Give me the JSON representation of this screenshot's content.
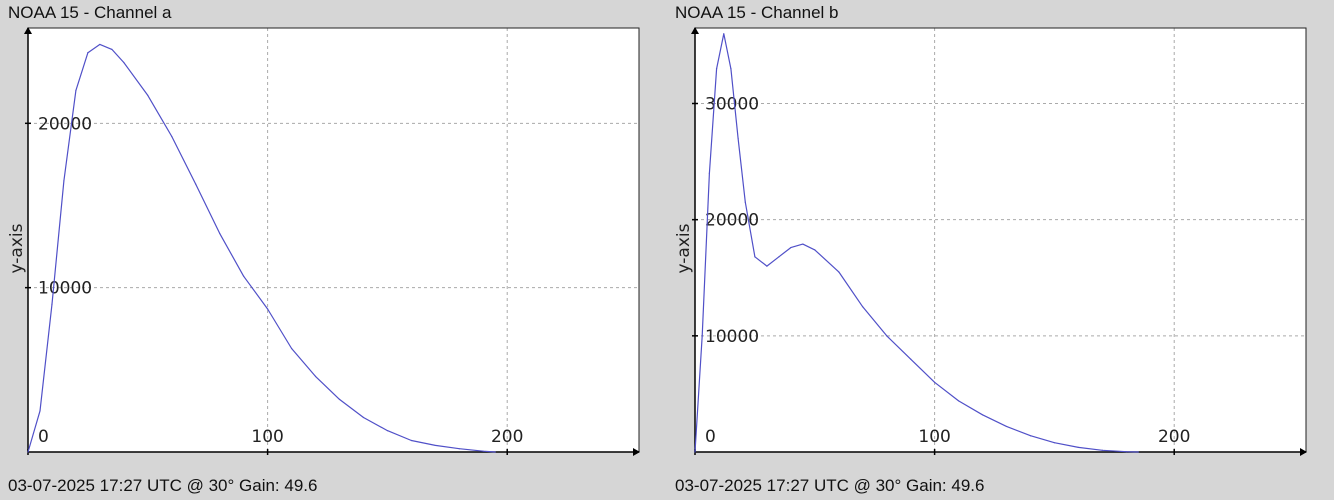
{
  "charts": [
    {
      "title": "NOAA 15 - Channel a",
      "footer": "03-07-2025 17:27 UTC @ 30° Gain: 49.6"
    },
    {
      "title": "NOAA 15 - Channel b",
      "footer": "03-07-2025 17:27 UTC @ 30° Gain: 49.6"
    }
  ],
  "chart_data": [
    {
      "type": "line",
      "title": "NOAA 15 - Channel a",
      "xlabel": "",
      "ylabel": "y-axis",
      "xlim": [
        0,
        255
      ],
      "ylim": [
        0,
        25800
      ],
      "xticks": [
        0,
        100,
        200
      ],
      "yticks": [
        10000,
        20000
      ],
      "grid": true,
      "line_color": "#5050c8",
      "x": [
        0,
        5,
        10,
        15,
        20,
        25,
        30,
        35,
        40,
        50,
        60,
        70,
        80,
        90,
        100,
        110,
        120,
        130,
        140,
        150,
        160,
        170,
        180,
        190,
        195
      ],
      "y": [
        0,
        2500,
        9000,
        16500,
        22000,
        24300,
        24800,
        24500,
        23700,
        21700,
        19200,
        16300,
        13300,
        10700,
        8700,
        6300,
        4600,
        3200,
        2100,
        1300,
        700,
        400,
        200,
        50,
        0
      ]
    },
    {
      "type": "line",
      "title": "NOAA 15 - Channel b",
      "xlabel": "",
      "ylabel": "y-axis",
      "xlim": [
        0,
        255
      ],
      "ylim": [
        0,
        36500
      ],
      "xticks": [
        0,
        100,
        200
      ],
      "yticks": [
        10000,
        20000,
        30000
      ],
      "grid": true,
      "line_color": "#5050c8",
      "x": [
        0,
        3,
        6,
        9,
        12,
        15,
        18,
        21,
        25,
        30,
        35,
        40,
        45,
        50,
        60,
        70,
        80,
        90,
        100,
        110,
        120,
        130,
        140,
        150,
        160,
        170,
        180,
        185
      ],
      "y": [
        0,
        10000,
        24000,
        33000,
        36000,
        33000,
        27000,
        21500,
        16800,
        16000,
        16800,
        17600,
        17900,
        17400,
        15500,
        12500,
        10000,
        8000,
        6000,
        4400,
        3200,
        2200,
        1400,
        800,
        400,
        150,
        30,
        0
      ]
    }
  ]
}
